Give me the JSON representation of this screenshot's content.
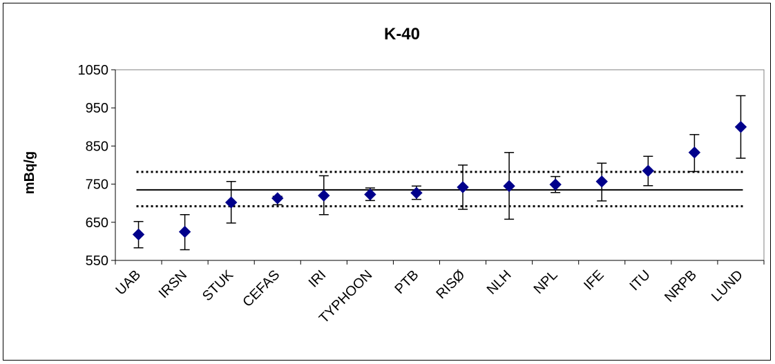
{
  "chart_data": {
    "type": "scatter",
    "title": "K-40",
    "xlabel": "",
    "ylabel": "mBq/g",
    "ylim": [
      550,
      1050
    ],
    "yticks": [
      550,
      650,
      750,
      850,
      950,
      1050
    ],
    "categories": [
      "UAB",
      "IRSN",
      "STUK",
      "CEFAS",
      "IRI",
      "TYPHOON",
      "PTB",
      "RISØ",
      "NLH",
      "NPL",
      "IFE",
      "ITU",
      "NRPB",
      "LUND"
    ],
    "values": [
      618,
      625,
      702,
      713,
      720,
      723,
      727,
      742,
      745,
      749,
      757,
      785,
      833,
      900
    ],
    "error_low": [
      583,
      578,
      648,
      696,
      670,
      707,
      710,
      684,
      658,
      728,
      706,
      746,
      783,
      818
    ],
    "error_high": [
      652,
      670,
      757,
      718,
      772,
      740,
      745,
      800,
      833,
      770,
      805,
      823,
      880,
      982
    ],
    "reference_line": 735,
    "reference_band": [
      692,
      782
    ],
    "grid": false,
    "legend": "none",
    "colors": {
      "marker": "#00008B",
      "line": "#000000"
    }
  }
}
